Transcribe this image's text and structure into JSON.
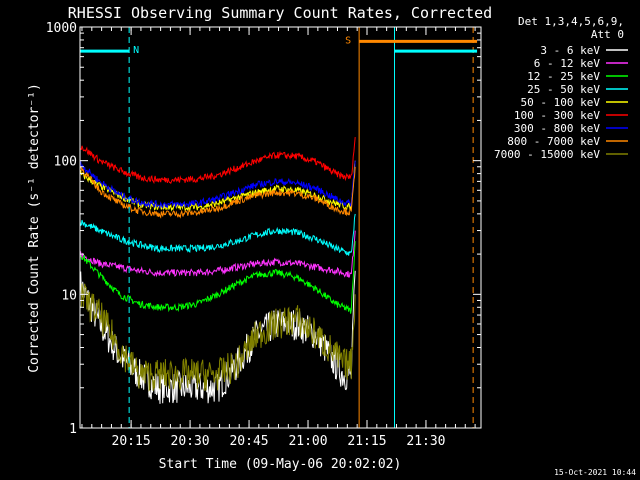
{
  "chart_data": {
    "type": "line",
    "title": "RHESSI Observing Summary Count Rates, Corrected",
    "xlabel": "Start Time (09-May-06 20:02:02)",
    "ylabel": "Corrected Count Rate (s⁻¹ detector⁻¹)",
    "x_units": "minutes after 20:02:02",
    "xlim": [
      0,
      102
    ],
    "ylim": [
      1,
      1000
    ],
    "y_scale": "log",
    "x_ticks": [
      {
        "value": 13,
        "label": "20:15"
      },
      {
        "value": 28,
        "label": "20:30"
      },
      {
        "value": 43,
        "label": "20:45"
      },
      {
        "value": 58,
        "label": "21:00"
      },
      {
        "value": 73,
        "label": "21:15"
      },
      {
        "value": 88,
        "label": "21:30"
      }
    ],
    "y_ticks": [
      {
        "value": 1,
        "label": "1"
      },
      {
        "value": 10,
        "label": "10"
      },
      {
        "value": 100,
        "label": "100"
      },
      {
        "value": 1000,
        "label": "1000"
      }
    ],
    "legend_header": [
      "Det 1,3,4,5,6,9,",
      "Att 0"
    ],
    "legend_position": "right",
    "series": [
      {
        "name": "3 - 6 keV",
        "color": "#ffffff",
        "x": [
          0,
          5,
          10,
          15,
          20,
          25,
          30,
          35,
          40,
          45,
          50,
          55,
          60,
          65,
          67,
          69,
          70
        ],
        "y": [
          12,
          6,
          3.5,
          2.5,
          2,
          2,
          2,
          2,
          3,
          5,
          6,
          6,
          5,
          3,
          2.5,
          2.5,
          15
        ]
      },
      {
        "name": "6 - 12 keV",
        "color": "#ff33ff",
        "x": [
          0,
          5,
          10,
          15,
          20,
          25,
          30,
          35,
          40,
          45,
          50,
          55,
          60,
          65,
          67,
          69,
          70
        ],
        "y": [
          20,
          17,
          16,
          15,
          14.5,
          14.5,
          14.5,
          15,
          16,
          17,
          17.5,
          17,
          16,
          15,
          14.5,
          14,
          30
        ]
      },
      {
        "name": "12 - 25 keV",
        "color": "#00ff00",
        "x": [
          0,
          5,
          10,
          15,
          20,
          25,
          30,
          35,
          40,
          45,
          50,
          55,
          60,
          65,
          67,
          69,
          70
        ],
        "y": [
          20,
          14,
          10,
          8.5,
          8,
          8,
          8.5,
          10,
          12,
          14,
          14.5,
          13.5,
          11,
          8.5,
          8,
          7.5,
          25
        ]
      },
      {
        "name": "25 - 50 keV",
        "color": "#00ffff",
        "x": [
          0,
          5,
          10,
          15,
          20,
          25,
          30,
          35,
          40,
          45,
          50,
          55,
          60,
          65,
          67,
          69,
          70
        ],
        "y": [
          35,
          30,
          26,
          23.5,
          22,
          22,
          22,
          23,
          25,
          28,
          30,
          29,
          26,
          22,
          21,
          20,
          40
        ]
      },
      {
        "name": "50 - 100 keV",
        "color": "#ffff00",
        "x": [
          0,
          5,
          10,
          15,
          20,
          25,
          30,
          35,
          40,
          45,
          50,
          55,
          60,
          65,
          67,
          69,
          70
        ],
        "y": [
          80,
          65,
          55,
          47,
          45,
          45,
          45,
          48,
          53,
          58,
          62,
          60,
          55,
          48,
          46,
          45,
          100
        ]
      },
      {
        "name": "100 - 300 keV",
        "color": "#ff0000",
        "x": [
          0,
          5,
          10,
          15,
          20,
          25,
          30,
          35,
          40,
          45,
          50,
          55,
          60,
          65,
          67,
          69,
          70
        ],
        "y": [
          130,
          100,
          85,
          75,
          72,
          72,
          73,
          78,
          88,
          100,
          110,
          108,
          98,
          80,
          76,
          75,
          150
        ]
      },
      {
        "name": "300 - 800 keV",
        "color": "#0000ff",
        "x": [
          0,
          5,
          10,
          15,
          20,
          25,
          30,
          35,
          40,
          45,
          50,
          55,
          60,
          65,
          67,
          69,
          70
        ],
        "y": [
          95,
          70,
          56,
          49,
          47,
          47,
          48,
          52,
          59,
          66,
          70,
          68,
          62,
          52,
          49,
          48,
          100
        ]
      },
      {
        "name": "800 - 7000 keV",
        "color": "#ff8800",
        "x": [
          0,
          5,
          10,
          15,
          20,
          25,
          30,
          35,
          40,
          45,
          50,
          55,
          60,
          65,
          67,
          69,
          70
        ],
        "y": [
          90,
          60,
          48,
          42,
          40,
          40,
          41,
          44,
          50,
          55,
          58,
          57,
          52,
          44,
          42,
          41,
          90
        ]
      },
      {
        "name": "7000 - 15000 keV",
        "color": "#808000",
        "x": [
          0,
          5,
          10,
          15,
          20,
          25,
          30,
          35,
          40,
          45,
          50,
          55,
          60,
          65,
          67,
          69,
          70
        ],
        "y": [
          10,
          7,
          4,
          2.5,
          2.5,
          2.5,
          2.5,
          2.5,
          3,
          5,
          6,
          6.5,
          5,
          3.5,
          3,
          3,
          10
        ]
      }
    ],
    "flag_bars": [
      {
        "label": "N",
        "color": "#00ffff",
        "x_start": 0,
        "x_end": 12.5,
        "y": 660
      },
      {
        "label": "S",
        "color": "#ff8800",
        "x_start": 71,
        "x_end": 101,
        "y": 780
      },
      {
        "label": "",
        "color": "#00ffff",
        "x_start": 80,
        "x_end": 101,
        "y": 660
      }
    ],
    "vertical_markers": [
      {
        "x": 12.5,
        "color": "#00ffff",
        "style": "dashed"
      },
      {
        "x": 71,
        "color": "#ff8800",
        "style": "solid"
      },
      {
        "x": 80,
        "color": "#00ffff",
        "style": "solid"
      },
      {
        "x": 100,
        "color": "#ff8800",
        "style": "dashed"
      }
    ],
    "timestamp": "15-Oct-2021 10:44"
  }
}
